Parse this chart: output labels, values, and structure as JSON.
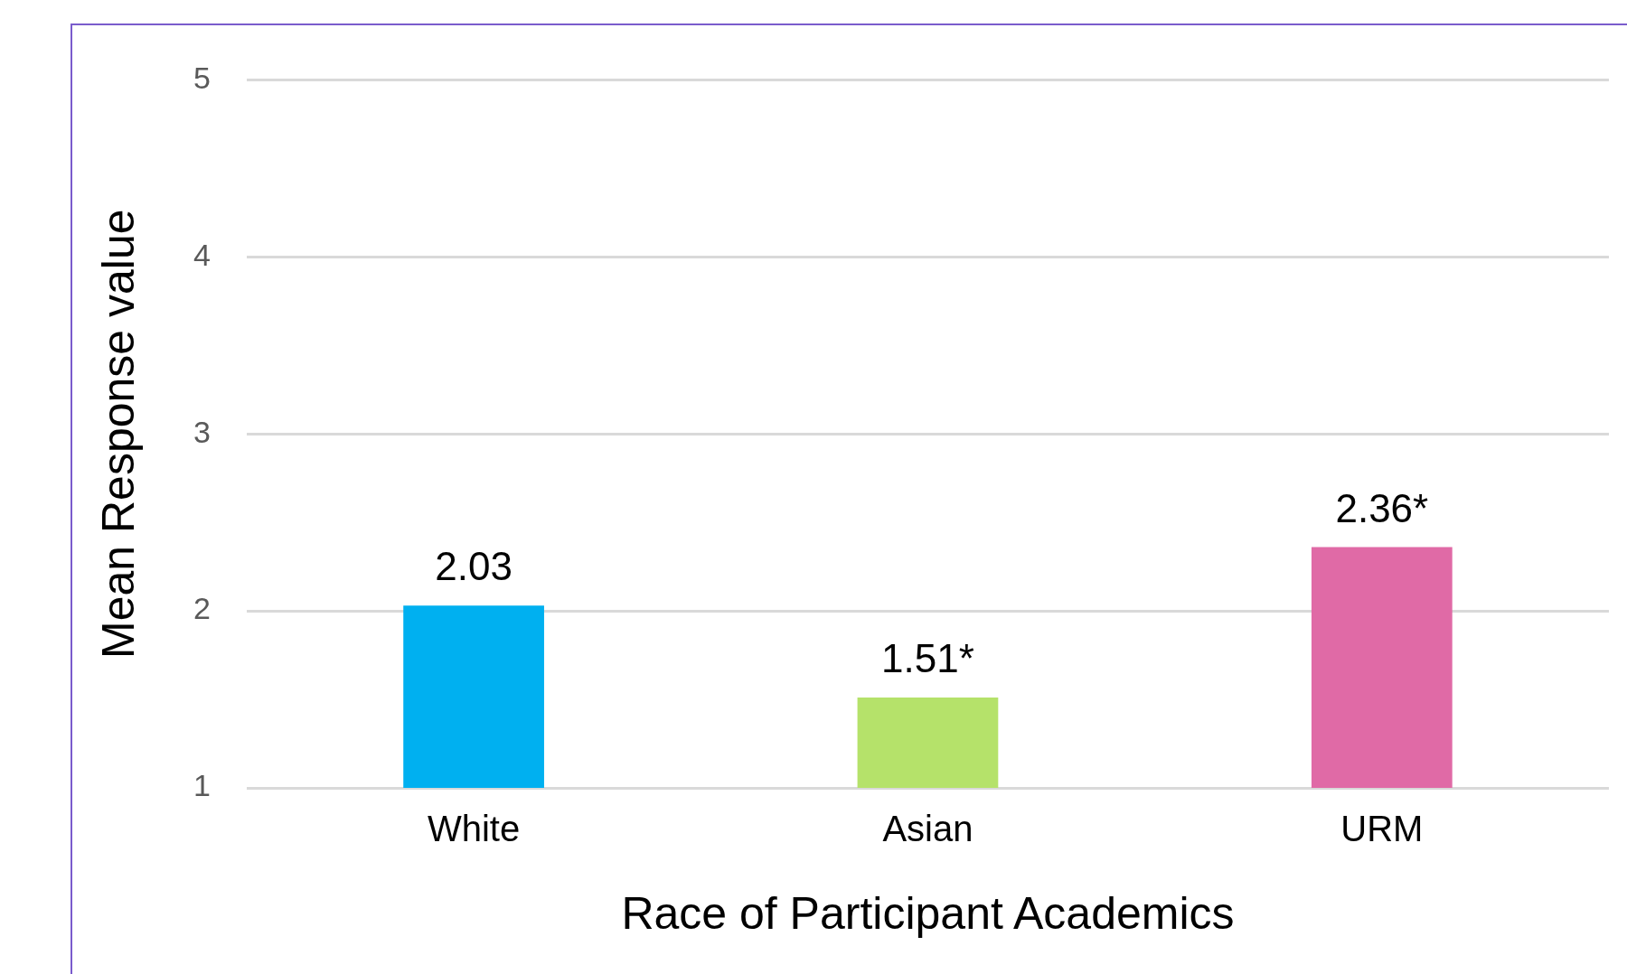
{
  "chart_data": {
    "type": "bar",
    "xlabel": "Race of Participant Academics",
    "ylabel": "Mean Response value",
    "categories": [
      "White",
      "Asian",
      "URM"
    ],
    "values": [
      2.03,
      1.51,
      2.36
    ],
    "colors": [
      "#00b0f0",
      "#b5e26a",
      "#e06aa6"
    ],
    "value_labels": [
      "2.03",
      "1.51*",
      "2.36*"
    ],
    "ylim": [
      1,
      5
    ],
    "yticks": [
      1,
      2,
      3,
      4,
      5
    ],
    "grid": "y"
  }
}
